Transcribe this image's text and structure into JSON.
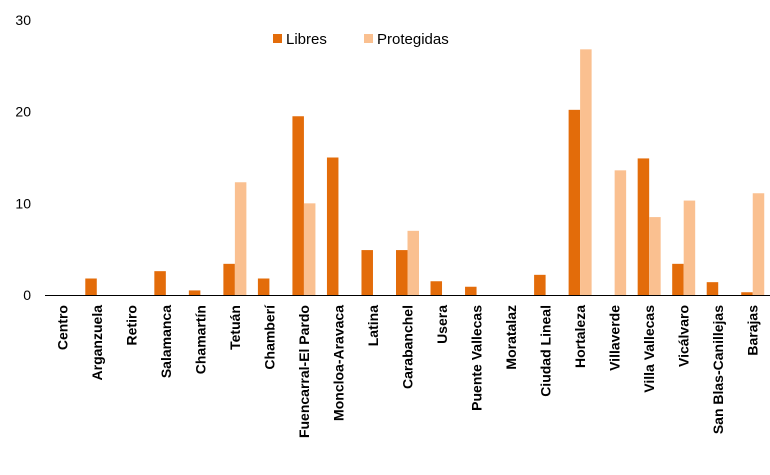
{
  "chart_data": {
    "type": "bar",
    "categories": [
      "Centro",
      "Arganzuela",
      "Retiro",
      "Salamanca",
      "Chamartín",
      "Tetuán",
      "Chamberí",
      "Fuencarral-El Pardo",
      "Moncloa-Aravaca",
      "Latina",
      "Carabanchel",
      "Usera",
      "Puente Vallecas",
      "Moratalaz",
      "Ciudad Lineal",
      "Hortaleza",
      "Villaverde",
      "Villa Vallecas",
      "Vicálvaro",
      "San Blas-Canillejas",
      "Barajas"
    ],
    "series": [
      {
        "name": "Libres",
        "color": "#e36c0a",
        "values": [
          0,
          1.8,
          0,
          2.6,
          0.5,
          3.4,
          1.8,
          19.5,
          15.0,
          4.9,
          4.9,
          1.5,
          0.9,
          0,
          2.2,
          20.2,
          0,
          14.9,
          3.4,
          1.4,
          0.3
        ]
      },
      {
        "name": "Protegidas",
        "color": "#fac090",
        "values": [
          0,
          0,
          0,
          0,
          0,
          12.3,
          0,
          10.0,
          0,
          0,
          7.0,
          0,
          0,
          0,
          0,
          26.8,
          13.6,
          8.5,
          10.3,
          0,
          11.1
        ]
      }
    ],
    "ylim": [
      0,
      30
    ],
    "yticks": [
      0,
      10,
      20,
      30
    ],
    "legend": "top-center",
    "grid": false
  }
}
